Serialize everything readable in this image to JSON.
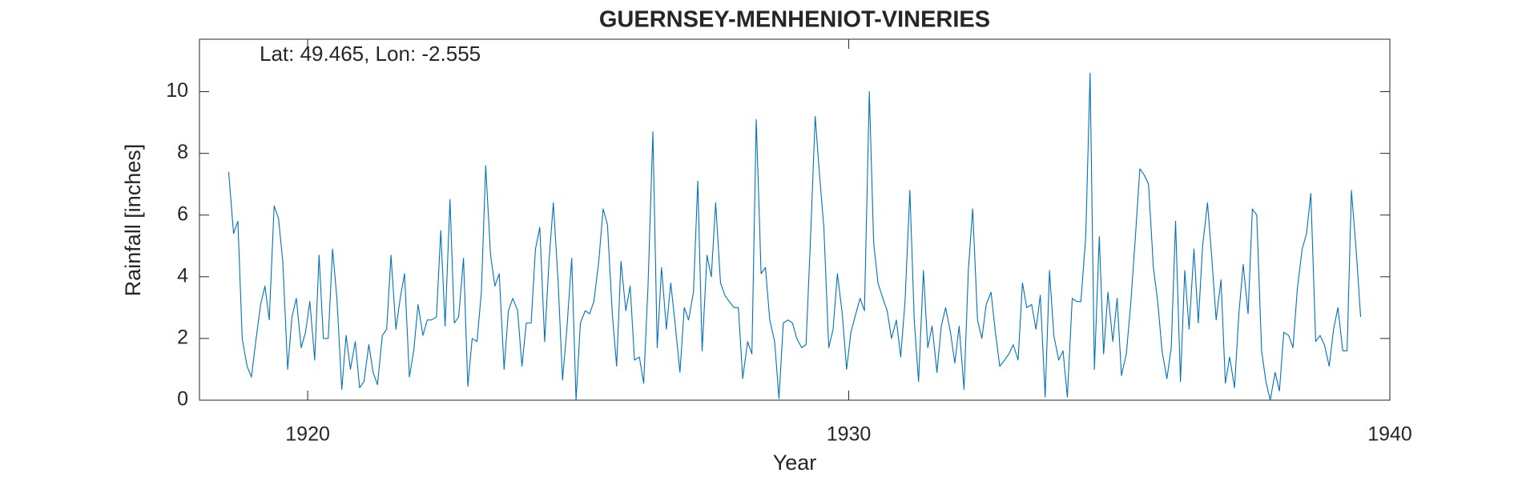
{
  "chart_data": {
    "type": "line",
    "title": "GUERNSEY-MENHENIOT-VINERIES",
    "annotation": "Lat: 49.465, Lon: -2.555",
    "xlabel": "Year",
    "ylabel": "Rainfall [inches]",
    "xlim": [
      1918,
      1940
    ],
    "ylim": [
      0,
      11.7
    ],
    "xticks": [
      1920,
      1930,
      1940
    ],
    "yticks": [
      0,
      2,
      4,
      6,
      8,
      10
    ],
    "grid": false,
    "series": [
      {
        "color": "#0072bd",
        "x": [
          1918.54,
          1918.63,
          1918.71,
          1918.79,
          1918.88,
          1918.96,
          1919.04,
          1919.13,
          1919.21,
          1919.29,
          1919.38,
          1919.46,
          1919.54,
          1919.63,
          1919.71,
          1919.79,
          1919.88,
          1919.96,
          1920.04,
          1920.13,
          1920.21,
          1920.29,
          1920.38,
          1920.46,
          1920.54,
          1920.63,
          1920.71,
          1920.79,
          1920.88,
          1920.96,
          1921.04,
          1921.13,
          1921.21,
          1921.29,
          1921.38,
          1921.46,
          1921.54,
          1921.63,
          1921.71,
          1921.79,
          1921.88,
          1921.96,
          1922.04,
          1922.13,
          1922.21,
          1922.29,
          1922.38,
          1922.46,
          1922.54,
          1922.63,
          1922.71,
          1922.79,
          1922.88,
          1922.96,
          1923.04,
          1923.13,
          1923.21,
          1923.29,
          1923.38,
          1923.46,
          1923.54,
          1923.63,
          1923.71,
          1923.79,
          1923.88,
          1923.96,
          1924.04,
          1924.13,
          1924.21,
          1924.29,
          1924.38,
          1924.46,
          1924.54,
          1924.63,
          1924.71,
          1924.79,
          1924.88,
          1924.96,
          1925.04,
          1925.13,
          1925.21,
          1925.29,
          1925.38,
          1925.46,
          1925.54,
          1925.63,
          1925.71,
          1925.79,
          1925.88,
          1925.96,
          1926.04,
          1926.13,
          1926.21,
          1926.29,
          1926.38,
          1926.46,
          1926.54,
          1926.63,
          1926.71,
          1926.79,
          1926.88,
          1926.96,
          1927.04,
          1927.13,
          1927.21,
          1927.29,
          1927.38,
          1927.46,
          1927.54,
          1927.63,
          1927.71,
          1927.79,
          1927.88,
          1927.96,
          1928.04,
          1928.13,
          1928.21,
          1928.29,
          1928.38,
          1928.46,
          1928.54,
          1928.63,
          1928.71,
          1928.79,
          1928.88,
          1928.96,
          1929.04,
          1929.13,
          1929.21,
          1929.29,
          1929.38,
          1929.46,
          1929.54,
          1929.63,
          1929.71,
          1929.79,
          1929.88,
          1929.96,
          1930.04,
          1930.13,
          1930.21,
          1930.29,
          1930.38,
          1930.46,
          1930.54,
          1930.63,
          1930.71,
          1930.79,
          1930.88,
          1930.96,
          1931.04,
          1931.13,
          1931.21,
          1931.29,
          1931.38,
          1931.46,
          1931.54,
          1931.63,
          1931.71,
          1931.79,
          1931.88,
          1931.96,
          1932.04,
          1932.13,
          1932.21,
          1932.29,
          1932.38,
          1932.46,
          1932.54,
          1932.63,
          1932.71,
          1932.79,
          1932.88,
          1932.96,
          1933.04,
          1933.13,
          1933.21,
          1933.29,
          1933.38,
          1933.46,
          1933.54,
          1933.63,
          1933.71,
          1933.79,
          1933.88,
          1933.96,
          1934.04,
          1934.13,
          1934.21,
          1934.29,
          1934.38,
          1934.46,
          1934.54,
          1934.63,
          1934.71,
          1934.79,
          1934.88,
          1934.96,
          1935.04,
          1935.13,
          1935.21,
          1935.29,
          1935.38,
          1935.46,
          1935.54,
          1935.63,
          1935.71,
          1935.79,
          1935.88,
          1935.96,
          1936.04,
          1936.13,
          1936.21,
          1936.29,
          1936.38,
          1936.46,
          1936.54,
          1936.63,
          1936.71,
          1936.79,
          1936.88,
          1936.96,
          1937.04,
          1937.13,
          1937.21,
          1937.29,
          1937.38,
          1937.46,
          1937.54,
          1937.63,
          1937.71,
          1937.79,
          1937.88,
          1937.96,
          1938.04,
          1938.13,
          1938.21,
          1938.29,
          1938.38,
          1938.46,
          1938.54,
          1938.63,
          1938.71,
          1938.79,
          1938.88,
          1938.96,
          1939.04,
          1939.13,
          1939.21,
          1939.29,
          1939.38,
          1939.46
        ],
        "values": [
          7.4,
          5.4,
          5.8,
          2.0,
          1.1,
          0.75,
          1.9,
          3.1,
          3.7,
          2.6,
          6.3,
          5.9,
          4.5,
          1.0,
          2.7,
          3.3,
          1.7,
          2.2,
          3.2,
          1.3,
          4.7,
          2.0,
          2.0,
          4.9,
          3.3,
          0.35,
          2.1,
          1.0,
          1.9,
          0.4,
          0.6,
          1.8,
          0.9,
          0.5,
          2.1,
          2.3,
          4.7,
          2.3,
          3.3,
          4.1,
          0.75,
          1.6,
          3.1,
          2.1,
          2.6,
          2.6,
          2.7,
          5.5,
          2.4,
          6.5,
          2.5,
          2.7,
          4.6,
          0.45,
          2.0,
          1.9,
          3.5,
          7.6,
          4.7,
          3.7,
          4.1,
          1.0,
          2.9,
          3.3,
          2.9,
          1.1,
          2.5,
          2.5,
          4.9,
          5.6,
          1.9,
          4.5,
          6.4,
          3.8,
          0.65,
          2.3,
          4.6,
          0.0,
          2.5,
          2.9,
          2.8,
          3.2,
          4.5,
          6.2,
          5.7,
          2.8,
          1.1,
          4.5,
          2.9,
          3.7,
          1.3,
          1.4,
          0.55,
          3.7,
          8.7,
          1.7,
          4.3,
          2.3,
          3.8,
          2.5,
          0.9,
          3.0,
          2.6,
          3.5,
          7.1,
          1.6,
          4.7,
          4.0,
          6.4,
          3.8,
          3.4,
          3.2,
          3.0,
          3.0,
          0.7,
          1.9,
          1.5,
          9.1,
          4.1,
          4.3,
          2.6,
          1.9,
          0.05,
          2.5,
          2.6,
          2.5,
          2.0,
          1.7,
          1.8,
          5.1,
          9.2,
          7.3,
          5.6,
          1.7,
          2.3,
          4.1,
          2.8,
          1.0,
          2.2,
          2.8,
          3.3,
          2.9,
          10.0,
          5.1,
          3.8,
          3.3,
          2.9,
          2.0,
          2.6,
          1.4,
          3.2,
          6.8,
          2.6,
          0.6,
          4.2,
          1.7,
          2.4,
          0.9,
          2.4,
          3.0,
          2.2,
          1.2,
          2.4,
          0.35,
          4.2,
          6.2,
          2.6,
          2.0,
          3.1,
          3.5,
          2.2,
          1.1,
          1.3,
          1.5,
          1.8,
          1.3,
          3.8,
          3.0,
          3.1,
          2.3,
          3.4,
          0.1,
          4.2,
          2.1,
          1.3,
          1.6,
          0.1,
          3.3,
          3.2,
          3.2,
          5.3,
          10.6,
          1.0,
          5.3,
          1.5,
          3.5,
          1.9,
          3.3,
          0.8,
          1.5,
          3.1,
          5.1,
          7.5,
          7.3,
          7.0,
          4.3,
          3.2,
          1.6,
          0.7,
          1.7,
          5.8,
          0.6,
          4.2,
          2.3,
          4.9,
          2.5,
          5.0,
          6.4,
          4.6,
          2.6,
          3.9,
          0.55,
          1.4,
          0.4,
          2.8,
          4.4,
          2.8,
          6.2,
          6.0,
          1.6,
          0.6,
          0.0,
          0.9,
          0.3,
          2.2,
          2.1,
          1.7,
          3.6,
          4.9,
          5.4,
          6.7,
          1.9,
          2.1,
          1.8,
          1.1,
          2.3,
          3.0,
          1.6,
          1.6,
          6.8,
          4.8,
          2.7
        ]
      }
    ]
  }
}
